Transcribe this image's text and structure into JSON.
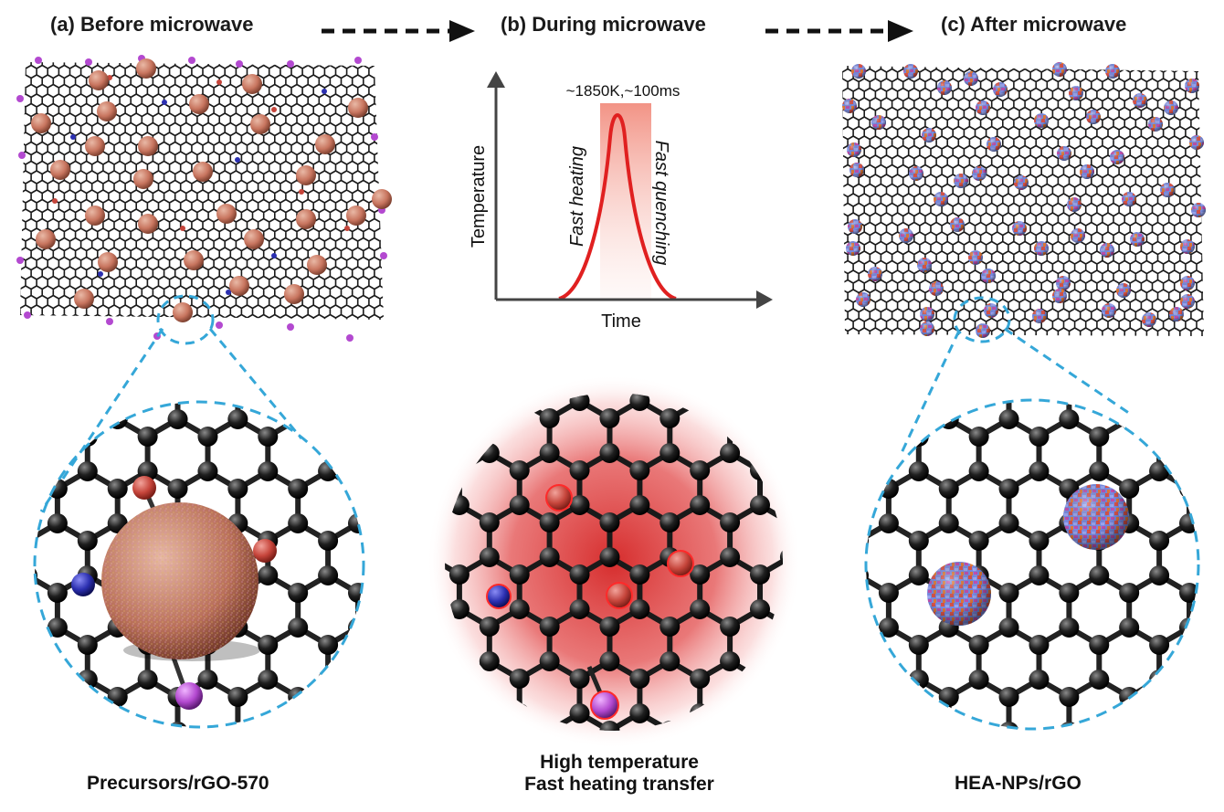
{
  "panels": {
    "before": {
      "title": "(a) Before microwave",
      "caption": "Precursors/rGO-570"
    },
    "during": {
      "title": "(b) During microwave",
      "caption_line1": "High temperature",
      "caption_line2": "Fast heating transfer"
    },
    "after": {
      "title": "(c) After microwave",
      "caption": "HEA-NPs/rGO"
    }
  },
  "heating_chart": {
    "peak_label": "~1850K,~100ms",
    "xlabel": "Time",
    "ylabel": "Temperature",
    "rise_label": "Fast heating",
    "fall_label": "Fast quenching"
  },
  "colors": {
    "precursor": "#c8755f",
    "metal_red": "#c6453b",
    "metal_blue": "#2b2fb0",
    "halide_magenta": "#b349d0",
    "heat_red": "#e53935",
    "zoom_outline": "#35a7d8",
    "lattice": "#1a1a1a"
  }
}
